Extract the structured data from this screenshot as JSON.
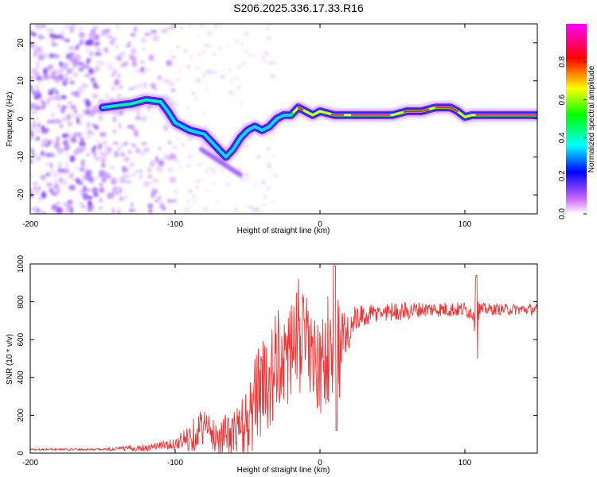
{
  "chart_data": [
    {
      "type": "heatmap",
      "title": "S206.2025.336.17.33.R16",
      "xlabel": "Height of straight line (km)",
      "ylabel": "Frequency (Hz)",
      "xlim": [
        -200,
        150
      ],
      "ylim": [
        -25,
        25
      ],
      "xticks": [
        "-200",
        "-100",
        "0",
        "100"
      ],
      "yticks": [
        "20",
        "10",
        "0",
        "-10",
        "-20"
      ],
      "colorbar": {
        "label": "Normalized spectral amplitude",
        "range": [
          0,
          1
        ],
        "ticks": [
          "0.0",
          "0.2",
          "0.4",
          "0.6",
          "0.8"
        ],
        "colors": [
          "#ffffff",
          "#cc66ff",
          "#0000ff",
          "#00ffff",
          "#00ff00",
          "#ffff00",
          "#ff0000",
          "#ff00ff"
        ]
      },
      "ridge": {
        "name": "dominant frequency trace",
        "points": [
          [
            -150,
            3
          ],
          [
            -140,
            3.5
          ],
          [
            -130,
            4
          ],
          [
            -120,
            5
          ],
          [
            -110,
            4.5
          ],
          [
            -105,
            2
          ],
          [
            -100,
            -1
          ],
          [
            -95,
            -2
          ],
          [
            -90,
            -3
          ],
          [
            -85,
            -3.5
          ],
          [
            -80,
            -4
          ],
          [
            -75,
            -6
          ],
          [
            -70,
            -8
          ],
          [
            -65,
            -10
          ],
          [
            -60,
            -8
          ],
          [
            -55,
            -5
          ],
          [
            -50,
            -3
          ],
          [
            -45,
            -2
          ],
          [
            -40,
            -3
          ],
          [
            -35,
            -2
          ],
          [
            -30,
            0
          ],
          [
            -25,
            1
          ],
          [
            -20,
            1
          ],
          [
            -15,
            3
          ],
          [
            -10,
            2
          ],
          [
            -5,
            1
          ],
          [
            0,
            2
          ],
          [
            10,
            1
          ],
          [
            20,
            1
          ],
          [
            30,
            1
          ],
          [
            40,
            1
          ],
          [
            50,
            1
          ],
          [
            60,
            2
          ],
          [
            70,
            2
          ],
          [
            80,
            3
          ],
          [
            90,
            3
          ],
          [
            95,
            2
          ],
          [
            100,
            0.5
          ],
          [
            105,
            1
          ],
          [
            110,
            1
          ],
          [
            120,
            1
          ],
          [
            130,
            1
          ],
          [
            140,
            1
          ],
          [
            150,
            1
          ]
        ]
      }
    },
    {
      "type": "line",
      "xlabel": "Height of straight line (km)",
      "ylabel": "SNR (10 * v/v)",
      "xlim": [
        -200,
        150
      ],
      "ylim": [
        0,
        1000
      ],
      "xticks": [
        "-200",
        "-100",
        "0",
        "100"
      ],
      "yticks": [
        "1000",
        "800",
        "600",
        "400",
        "200",
        "0"
      ],
      "series": [
        {
          "name": "SNR",
          "color": "#ee3333",
          "x": [
            -200,
            -150,
            -120,
            -110,
            -100,
            -90,
            -85,
            -80,
            -75,
            -70,
            -60,
            -50,
            -45,
            -40,
            -35,
            -30,
            -25,
            -20,
            -15,
            -10,
            -5,
            0,
            5,
            10,
            12,
            15,
            20,
            25,
            30,
            40,
            50,
            60,
            70,
            80,
            90,
            100,
            105,
            108,
            110,
            115,
            120,
            130,
            140,
            150
          ],
          "values": [
            20,
            20,
            30,
            40,
            50,
            80,
            120,
            150,
            100,
            90,
            100,
            150,
            250,
            350,
            400,
            450,
            500,
            550,
            550,
            600,
            500,
            420,
            550,
            650,
            500,
            600,
            650,
            700,
            720,
            740,
            750,
            750,
            760,
            760,
            760,
            760,
            740,
            770,
            760,
            760,
            760,
            760,
            760,
            760
          ],
          "noise": [
            5,
            5,
            20,
            20,
            30,
            80,
            100,
            100,
            80,
            100,
            120,
            200,
            250,
            250,
            280,
            300,
            300,
            300,
            300,
            280,
            250,
            250,
            300,
            400,
            350,
            200,
            120,
            80,
            60,
            50,
            50,
            50,
            40,
            40,
            40,
            40,
            40,
            180,
            40,
            30,
            30,
            30,
            30,
            30
          ]
        }
      ]
    }
  ]
}
